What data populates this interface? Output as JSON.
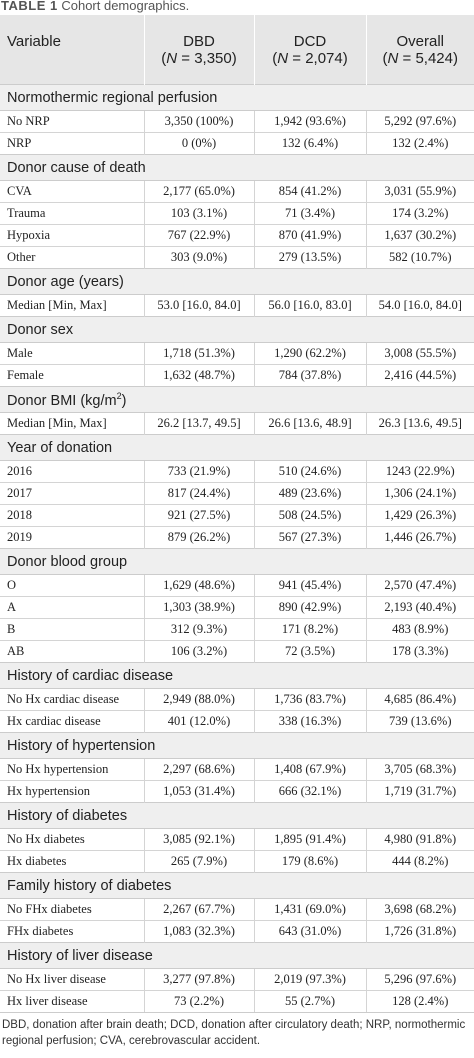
{
  "caption": {
    "label": "TABLE 1",
    "title": "Cohort demographics."
  },
  "header": {
    "variable": "Variable",
    "groups": [
      {
        "name": "DBD",
        "n_label": "N",
        "n_value": " = 3,350)"
      },
      {
        "name": "DCD",
        "n_label": "N",
        "n_value": " = 2,074)"
      },
      {
        "name": "Overall",
        "n_label": "N",
        "n_value": " = 5,424)"
      }
    ]
  },
  "sections": [
    {
      "title": "Normothermic regional perfusion",
      "rows": [
        [
          "No NRP",
          "3,350 (100%)",
          "1,942 (93.6%)",
          "5,292 (97.6%)"
        ],
        [
          "NRP",
          "0 (0%)",
          "132 (6.4%)",
          "132 (2.4%)"
        ]
      ]
    },
    {
      "title": "Donor cause of death",
      "rows": [
        [
          "CVA",
          "2,177 (65.0%)",
          "854 (41.2%)",
          "3,031 (55.9%)"
        ],
        [
          "Trauma",
          "103 (3.1%)",
          "71 (3.4%)",
          "174 (3.2%)"
        ],
        [
          "Hypoxia",
          "767 (22.9%)",
          "870 (41.9%)",
          "1,637 (30.2%)"
        ],
        [
          "Other",
          "303 (9.0%)",
          "279 (13.5%)",
          "582 (10.7%)"
        ]
      ]
    },
    {
      "title": "Donor age (years)",
      "rows": [
        [
          "Median [Min, Max]",
          "53.0 [16.0, 84.0]",
          "56.0 [16.0, 83.0]",
          "54.0 [16.0, 84.0]"
        ]
      ]
    },
    {
      "title": "Donor sex",
      "rows": [
        [
          "Male",
          "1,718 (51.3%)",
          "1,290 (62.2%)",
          "3,008 (55.5%)"
        ],
        [
          "Female",
          "1,632 (48.7%)",
          "784 (37.8%)",
          "2,416 (44.5%)"
        ]
      ]
    },
    {
      "title": "Donor BMI (kg/m",
      "sup": "2",
      "title_end": ")",
      "rows": [
        [
          "Median [Min, Max]",
          "26.2 [13.7, 49.5]",
          "26.6 [13.6, 48.9]",
          "26.3 [13.6, 49.5]"
        ]
      ]
    },
    {
      "title": "Year of donation",
      "rows": [
        [
          "2016",
          "733 (21.9%)",
          "510 (24.6%)",
          "1243 (22.9%)"
        ],
        [
          "2017",
          "817 (24.4%)",
          "489 (23.6%)",
          "1,306 (24.1%)"
        ],
        [
          "2018",
          "921 (27.5%)",
          "508 (24.5%)",
          "1,429 (26.3%)"
        ],
        [
          "2019",
          "879 (26.2%)",
          "567 (27.3%)",
          "1,446 (26.7%)"
        ]
      ]
    },
    {
      "title": "Donor blood group",
      "rows": [
        [
          "O",
          "1,629 (48.6%)",
          "941 (45.4%)",
          "2,570 (47.4%)"
        ],
        [
          "A",
          "1,303 (38.9%)",
          "890 (42.9%)",
          "2,193 (40.4%)"
        ],
        [
          "B",
          "312 (9.3%)",
          "171 (8.2%)",
          "483 (8.9%)"
        ],
        [
          "AB",
          "106 (3.2%)",
          "72 (3.5%)",
          "178 (3.3%)"
        ]
      ]
    },
    {
      "title": "History of cardiac disease",
      "rows": [
        [
          "No Hx cardiac disease",
          "2,949 (88.0%)",
          "1,736 (83.7%)",
          "4,685 (86.4%)"
        ],
        [
          "Hx cardiac disease",
          "401 (12.0%)",
          "338 (16.3%)",
          "739 (13.6%)"
        ]
      ]
    },
    {
      "title": "History of hypertension",
      "rows": [
        [
          "No Hx hypertension",
          "2,297 (68.6%)",
          "1,408 (67.9%)",
          "3,705 (68.3%)"
        ],
        [
          "Hx hypertension",
          "1,053 (31.4%)",
          "666 (32.1%)",
          "1,719 (31.7%)"
        ]
      ]
    },
    {
      "title": "History of diabetes",
      "rows": [
        [
          "No Hx diabetes",
          "3,085 (92.1%)",
          "1,895 (91.4%)",
          "4,980 (91.8%)"
        ],
        [
          "Hx diabetes",
          "265 (7.9%)",
          "179 (8.6%)",
          "444 (8.2%)"
        ]
      ]
    },
    {
      "title": "Family history of diabetes",
      "rows": [
        [
          "No FHx diabetes",
          "2,267 (67.7%)",
          "1,431 (69.0%)",
          "3,698 (68.2%)"
        ],
        [
          "FHx diabetes",
          "1,083 (32.3%)",
          "643 (31.0%)",
          "1,726 (31.8%)"
        ]
      ]
    },
    {
      "title": "History of liver disease",
      "rows": [
        [
          "No Hx liver disease",
          "3,277 (97.8%)",
          "2,019 (97.3%)",
          "5,296 (97.6%)"
        ],
        [
          "Hx liver disease",
          "73 (2.2%)",
          "55 (2.7%)",
          "128 (2.4%)"
        ]
      ]
    }
  ],
  "footnote": "DBD, donation after brain death; DCD, donation after circulatory death; NRP, normothermic regional perfusion; CVA, cerebrovascular accident."
}
